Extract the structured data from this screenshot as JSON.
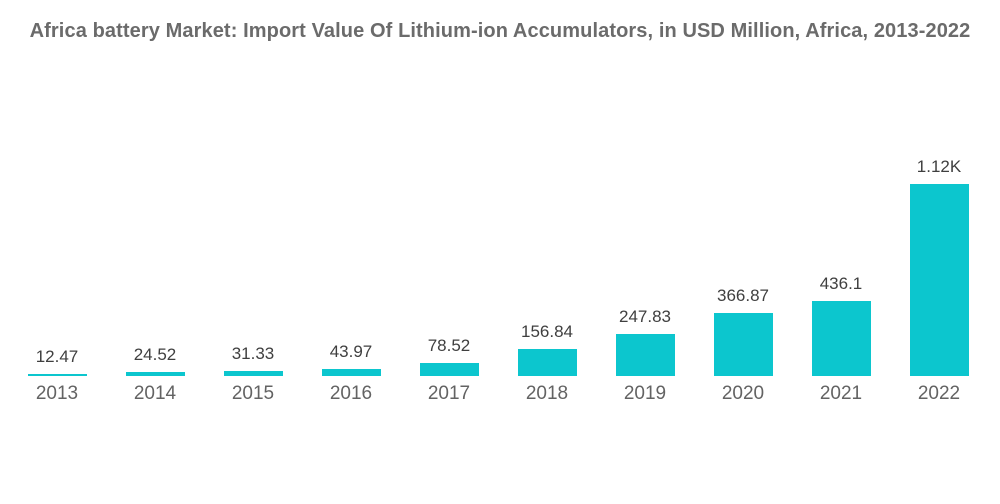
{
  "title": "Africa battery Market: Import Value Of Lithium-ion Accumulators, in USD Million, Africa, 2013-2022",
  "colors": {
    "bar": "#0cc6ce",
    "title_text": "#6b6b6b",
    "value_label_text": "#3f3f3f",
    "axis_label_text": "#636363",
    "background": "#ffffff"
  },
  "chart_data": {
    "type": "bar",
    "title": "Africa battery Market: Import Value Of Lithium-ion Accumulators, in USD Million, Africa, 2013-2022",
    "categories": [
      "2013",
      "2014",
      "2015",
      "2016",
      "2017",
      "2018",
      "2019",
      "2020",
      "2021",
      "2022"
    ],
    "values": [
      12.47,
      24.52,
      31.33,
      43.97,
      78.52,
      156.84,
      247.83,
      366.87,
      436.1,
      1120
    ],
    "value_labels": [
      "12.47",
      "24.52",
      "31.33",
      "43.97",
      "78.52",
      "156.84",
      "247.83",
      "366.87",
      "436.1",
      "1.12K"
    ],
    "xlabel": "",
    "ylabel": "",
    "ylim": [
      0,
      1120
    ],
    "grid": false,
    "legend": false,
    "bar_color": "#0cc6ce"
  }
}
